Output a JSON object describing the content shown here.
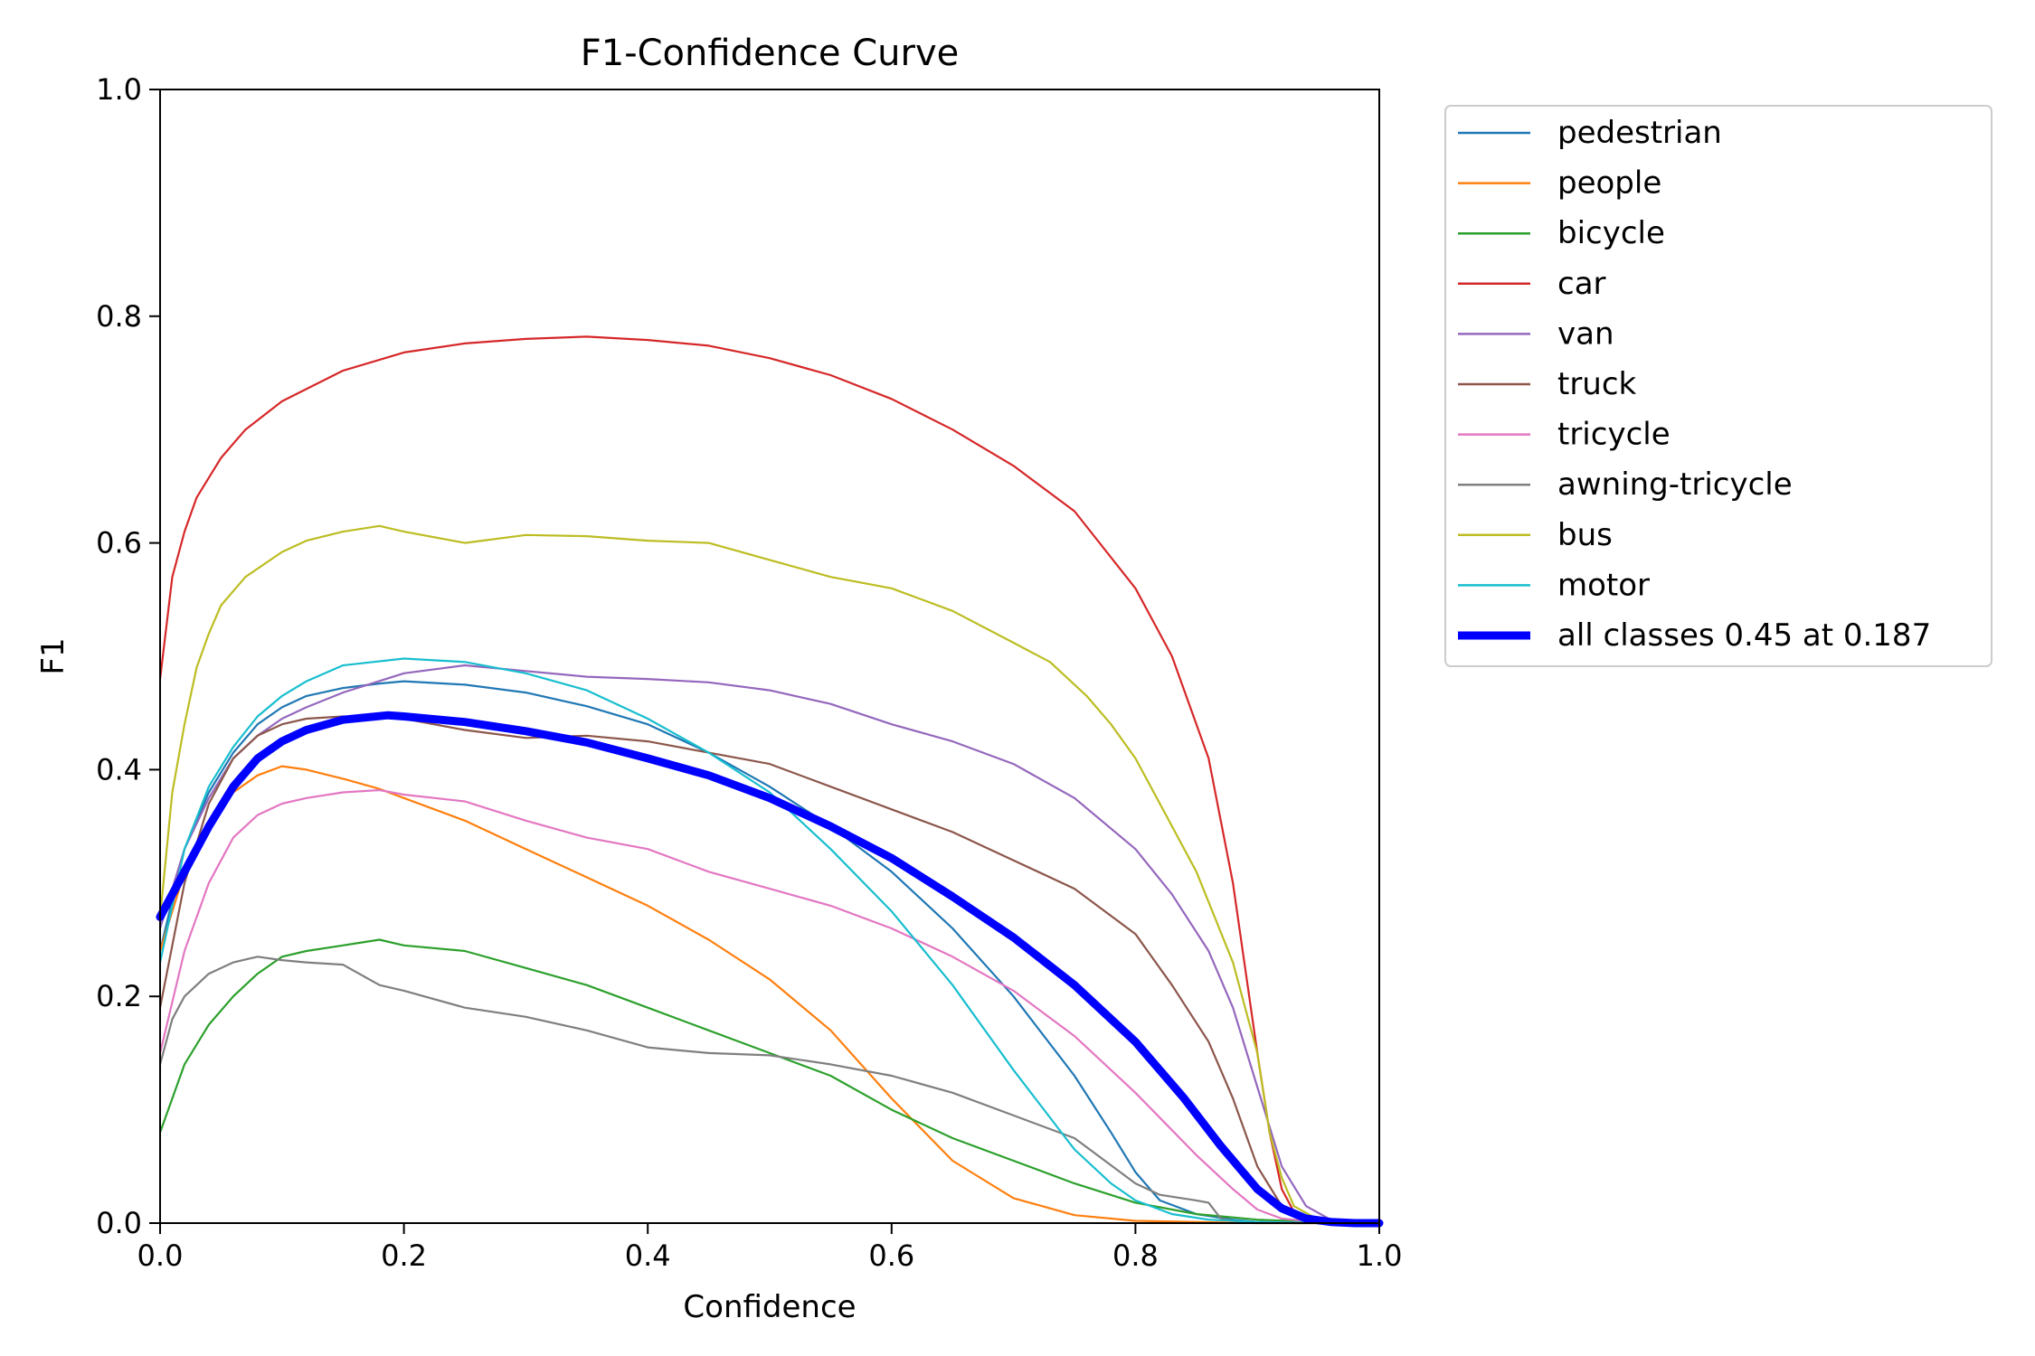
{
  "chart_data": {
    "type": "line",
    "title": "F1-Confidence Curve",
    "xlabel": "Confidence",
    "ylabel": "F1",
    "xlim": [
      0,
      1
    ],
    "ylim": [
      0,
      1
    ],
    "x_ticks": [
      "0.0",
      "0.2",
      "0.4",
      "0.6",
      "0.8",
      "1.0"
    ],
    "y_ticks": [
      "0.0",
      "0.2",
      "0.4",
      "0.6",
      "0.8",
      "1.0"
    ],
    "grid": false,
    "legend_position": "outside-upper-right",
    "series": [
      {
        "name": "pedestrian",
        "color": "#1f77b4",
        "x": [
          0,
          0.02,
          0.04,
          0.06,
          0.08,
          0.1,
          0.12,
          0.15,
          0.18,
          0.2,
          0.25,
          0.3,
          0.35,
          0.4,
          0.45,
          0.5,
          0.55,
          0.6,
          0.65,
          0.7,
          0.75,
          0.78,
          0.8,
          0.82,
          0.85,
          0.88,
          0.9,
          0.93,
          0.96,
          1.0
        ],
        "y": [
          0.24,
          0.33,
          0.38,
          0.415,
          0.44,
          0.455,
          0.465,
          0.472,
          0.476,
          0.478,
          0.475,
          0.468,
          0.456,
          0.44,
          0.415,
          0.385,
          0.35,
          0.31,
          0.26,
          0.2,
          0.13,
          0.08,
          0.045,
          0.02,
          0.008,
          0.003,
          0.001,
          0,
          0,
          0
        ]
      },
      {
        "name": "people",
        "color": "#ff7f0e",
        "x": [
          0,
          0.02,
          0.04,
          0.06,
          0.08,
          0.1,
          0.12,
          0.15,
          0.18,
          0.2,
          0.25,
          0.3,
          0.35,
          0.4,
          0.45,
          0.5,
          0.55,
          0.6,
          0.65,
          0.7,
          0.75,
          0.8,
          0.85,
          0.9,
          1.0
        ],
        "y": [
          0.24,
          0.31,
          0.355,
          0.38,
          0.395,
          0.403,
          0.4,
          0.392,
          0.383,
          0.375,
          0.355,
          0.33,
          0.305,
          0.28,
          0.25,
          0.215,
          0.17,
          0.11,
          0.055,
          0.022,
          0.007,
          0.002,
          0.001,
          0,
          0
        ]
      },
      {
        "name": "bicycle",
        "color": "#2ca02c",
        "x": [
          0,
          0.02,
          0.04,
          0.06,
          0.08,
          0.1,
          0.12,
          0.15,
          0.18,
          0.2,
          0.25,
          0.3,
          0.35,
          0.4,
          0.45,
          0.5,
          0.55,
          0.6,
          0.65,
          0.7,
          0.75,
          0.8,
          0.85,
          0.9,
          0.95,
          1.0
        ],
        "y": [
          0.08,
          0.14,
          0.175,
          0.2,
          0.22,
          0.235,
          0.24,
          0.245,
          0.25,
          0.245,
          0.24,
          0.225,
          0.21,
          0.19,
          0.17,
          0.15,
          0.13,
          0.1,
          0.075,
          0.055,
          0.035,
          0.018,
          0.008,
          0.003,
          0.001,
          0
        ]
      },
      {
        "name": "car",
        "color": "#d62728",
        "x": [
          0,
          0.01,
          0.02,
          0.03,
          0.05,
          0.07,
          0.1,
          0.15,
          0.2,
          0.25,
          0.3,
          0.35,
          0.4,
          0.45,
          0.5,
          0.55,
          0.6,
          0.65,
          0.7,
          0.75,
          0.8,
          0.83,
          0.86,
          0.88,
          0.9,
          0.91,
          0.92,
          0.93,
          0.95,
          1.0
        ],
        "y": [
          0.48,
          0.57,
          0.61,
          0.64,
          0.675,
          0.7,
          0.725,
          0.752,
          0.768,
          0.776,
          0.78,
          0.782,
          0.779,
          0.774,
          0.763,
          0.748,
          0.727,
          0.7,
          0.668,
          0.628,
          0.56,
          0.5,
          0.41,
          0.3,
          0.15,
          0.08,
          0.03,
          0.01,
          0.002,
          0
        ]
      },
      {
        "name": "van",
        "color": "#9467bd",
        "x": [
          0,
          0.02,
          0.04,
          0.06,
          0.08,
          0.1,
          0.12,
          0.15,
          0.2,
          0.25,
          0.3,
          0.35,
          0.4,
          0.45,
          0.5,
          0.55,
          0.6,
          0.65,
          0.7,
          0.75,
          0.8,
          0.83,
          0.86,
          0.88,
          0.9,
          0.92,
          0.94,
          0.96,
          1.0
        ],
        "y": [
          0.26,
          0.33,
          0.375,
          0.41,
          0.43,
          0.445,
          0.455,
          0.468,
          0.485,
          0.492,
          0.487,
          0.482,
          0.48,
          0.477,
          0.47,
          0.458,
          0.44,
          0.425,
          0.405,
          0.375,
          0.33,
          0.29,
          0.24,
          0.19,
          0.12,
          0.05,
          0.015,
          0.003,
          0
        ]
      },
      {
        "name": "truck",
        "color": "#8c564b",
        "x": [
          0,
          0.02,
          0.04,
          0.06,
          0.08,
          0.1,
          0.12,
          0.15,
          0.2,
          0.25,
          0.3,
          0.35,
          0.4,
          0.45,
          0.5,
          0.55,
          0.6,
          0.65,
          0.7,
          0.75,
          0.8,
          0.83,
          0.86,
          0.88,
          0.9,
          0.92,
          0.94,
          1.0
        ],
        "y": [
          0.19,
          0.3,
          0.37,
          0.41,
          0.43,
          0.44,
          0.445,
          0.447,
          0.445,
          0.435,
          0.428,
          0.43,
          0.425,
          0.415,
          0.405,
          0.385,
          0.365,
          0.345,
          0.32,
          0.295,
          0.255,
          0.21,
          0.16,
          0.11,
          0.05,
          0.015,
          0.003,
          0
        ]
      },
      {
        "name": "tricycle",
        "color": "#e377c2",
        "x": [
          0,
          0.02,
          0.04,
          0.06,
          0.08,
          0.1,
          0.12,
          0.15,
          0.18,
          0.2,
          0.25,
          0.3,
          0.35,
          0.4,
          0.45,
          0.5,
          0.55,
          0.6,
          0.65,
          0.7,
          0.75,
          0.8,
          0.85,
          0.88,
          0.9,
          0.92,
          0.95,
          1.0
        ],
        "y": [
          0.15,
          0.24,
          0.3,
          0.34,
          0.36,
          0.37,
          0.375,
          0.38,
          0.382,
          0.378,
          0.372,
          0.355,
          0.34,
          0.33,
          0.31,
          0.295,
          0.28,
          0.26,
          0.235,
          0.205,
          0.165,
          0.115,
          0.06,
          0.03,
          0.012,
          0.004,
          0.001,
          0
        ]
      },
      {
        "name": "awning-tricycle",
        "color": "#7f7f7f",
        "x": [
          0,
          0.01,
          0.02,
          0.03,
          0.04,
          0.06,
          0.08,
          0.1,
          0.12,
          0.15,
          0.18,
          0.2,
          0.25,
          0.3,
          0.35,
          0.4,
          0.45,
          0.5,
          0.55,
          0.6,
          0.65,
          0.7,
          0.75,
          0.8,
          0.82,
          0.85,
          0.86,
          0.87,
          0.88,
          0.9,
          1.0
        ],
        "y": [
          0.14,
          0.18,
          0.2,
          0.21,
          0.22,
          0.23,
          0.235,
          0.232,
          0.23,
          0.228,
          0.21,
          0.205,
          0.19,
          0.182,
          0.17,
          0.155,
          0.15,
          0.148,
          0.14,
          0.13,
          0.115,
          0.095,
          0.075,
          0.035,
          0.025,
          0.02,
          0.018,
          0.004,
          0.002,
          0.001,
          0
        ]
      },
      {
        "name": "bus",
        "color": "#bcbd22",
        "x": [
          0,
          0.01,
          0.02,
          0.03,
          0.04,
          0.05,
          0.07,
          0.1,
          0.12,
          0.15,
          0.18,
          0.2,
          0.25,
          0.3,
          0.35,
          0.4,
          0.45,
          0.5,
          0.55,
          0.6,
          0.65,
          0.7,
          0.73,
          0.76,
          0.78,
          0.8,
          0.82,
          0.85,
          0.88,
          0.9,
          0.91,
          0.92,
          0.93,
          0.95,
          1.0
        ],
        "y": [
          0.27,
          0.38,
          0.44,
          0.49,
          0.52,
          0.545,
          0.57,
          0.592,
          0.602,
          0.61,
          0.615,
          0.61,
          0.6,
          0.607,
          0.606,
          0.602,
          0.6,
          0.585,
          0.57,
          0.56,
          0.54,
          0.512,
          0.495,
          0.465,
          0.44,
          0.41,
          0.37,
          0.31,
          0.23,
          0.15,
          0.08,
          0.04,
          0.015,
          0.003,
          0
        ]
      },
      {
        "name": "motor",
        "color": "#17becf",
        "x": [
          0,
          0.02,
          0.04,
          0.06,
          0.08,
          0.1,
          0.12,
          0.15,
          0.2,
          0.25,
          0.3,
          0.35,
          0.4,
          0.45,
          0.5,
          0.55,
          0.6,
          0.65,
          0.7,
          0.75,
          0.78,
          0.8,
          0.83,
          0.86,
          0.9,
          0.95,
          1.0
        ],
        "y": [
          0.23,
          0.33,
          0.385,
          0.42,
          0.447,
          0.465,
          0.478,
          0.492,
          0.498,
          0.495,
          0.485,
          0.47,
          0.445,
          0.415,
          0.38,
          0.33,
          0.275,
          0.21,
          0.135,
          0.065,
          0.035,
          0.02,
          0.008,
          0.003,
          0.001,
          0,
          0
        ]
      },
      {
        "name": "all classes 0.45 at 0.187",
        "color": "#0000ff",
        "bold": true,
        "x": [
          0,
          0.02,
          0.04,
          0.06,
          0.08,
          0.1,
          0.12,
          0.15,
          0.187,
          0.2,
          0.25,
          0.3,
          0.35,
          0.4,
          0.45,
          0.5,
          0.55,
          0.6,
          0.65,
          0.7,
          0.75,
          0.8,
          0.84,
          0.87,
          0.9,
          0.92,
          0.94,
          0.96,
          0.98,
          1.0
        ],
        "y": [
          0.27,
          0.31,
          0.35,
          0.385,
          0.41,
          0.425,
          0.435,
          0.444,
          0.448,
          0.447,
          0.442,
          0.434,
          0.424,
          0.41,
          0.395,
          0.375,
          0.35,
          0.322,
          0.288,
          0.252,
          0.21,
          0.16,
          0.11,
          0.068,
          0.03,
          0.013,
          0.004,
          0.001,
          0,
          0
        ]
      }
    ]
  }
}
